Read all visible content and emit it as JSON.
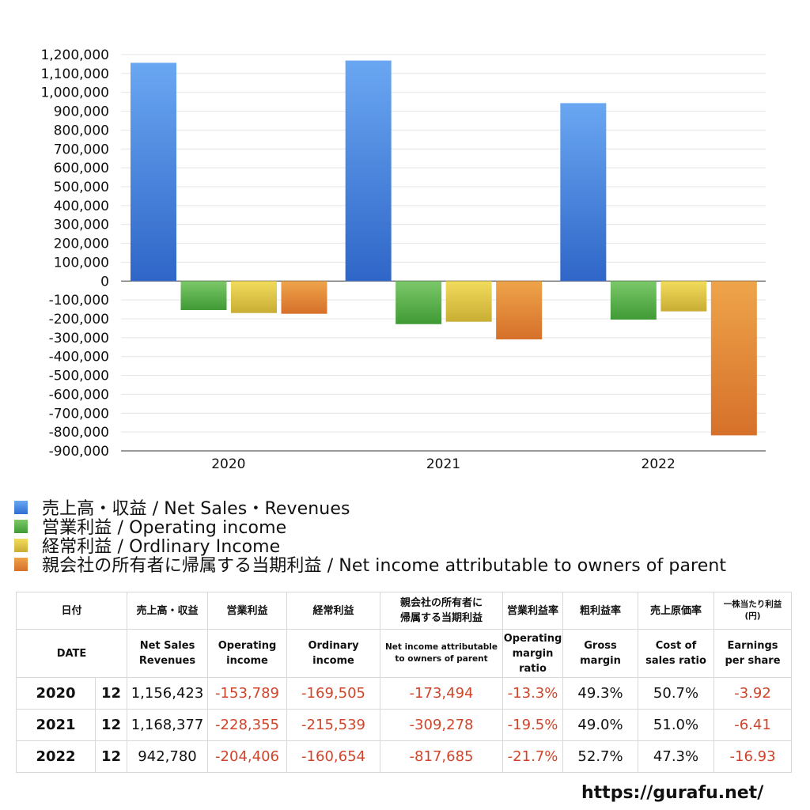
{
  "chart_data": {
    "type": "bar",
    "categories": [
      "2020",
      "2021",
      "2022"
    ],
    "series": [
      {
        "name": "売上高・収益 / Net Sales・Revenues",
        "values": [
          1156423,
          1168377,
          942780
        ],
        "color": "#3c7fde"
      },
      {
        "name": "営業利益 / Operating income",
        "values": [
          -153789,
          -228355,
          -204406
        ],
        "color": "#4aa63c"
      },
      {
        "name": "経常利益 / Ordlinary Income",
        "values": [
          -169505,
          -215539,
          -160654
        ],
        "color": "#dcc43c"
      },
      {
        "name": "親会社の所有者に帰属する当期利益 / Net income attributable to owners of parent",
        "values": [
          -173494,
          -309278,
          -817685
        ],
        "color": "#e0822e"
      }
    ],
    "ylim": [
      -900000,
      1200000
    ],
    "ytick_step": 100000,
    "yticks": [
      "1,200,000",
      "1,100,000",
      "1,000,000",
      "900,000",
      "800,000",
      "700,000",
      "600,000",
      "500,000",
      "400,000",
      "300,000",
      "200,000",
      "100,000",
      "0",
      "-100,000",
      "-200,000",
      "-300,000",
      "-400,000",
      "-500,000",
      "-600,000",
      "-700,000",
      "-800,000",
      "-900,000"
    ],
    "grid": true,
    "legend_position": "bottom"
  },
  "table": {
    "header_jp": [
      "日付",
      "売上高・収益",
      "営業利益",
      "経常利益",
      "親会社の所有者に帰属する当期利益",
      "営業利益率",
      "粗利益率",
      "売上原価率",
      "一株当たり利益(円)"
    ],
    "header_jp_parts": {
      "netincome_1": "親会社の所有者に",
      "netincome_2": "帰属する当期利益",
      "eps_1": "一株当たり利益",
      "eps_2": "(円)"
    },
    "header_en": {
      "date": "DATE",
      "sales_1": "Net Sales",
      "sales_2": "Revenues",
      "op_1": "Operating",
      "op_2": "income",
      "ord_1": "Ordinary",
      "ord_2": "income",
      "ni_1": "Net income attributable",
      "ni_2": "to owners of parent",
      "opm_1": "Operating",
      "opm_2": "margin",
      "opm_3": "ratio",
      "gm_1": "Gross",
      "gm_2": "margin",
      "cos_1": "Cost of",
      "cos_2": "sales ratio",
      "eps_1": "Earnings",
      "eps_2": "per share"
    },
    "rows": [
      {
        "year": "2020",
        "month": "12",
        "sales": "1,156,423",
        "op": "-153,789",
        "ord": "-169,505",
        "ni": "-173,494",
        "opm": "-13.3%",
        "gm": "49.3%",
        "cos": "50.7%",
        "eps": "-3.92"
      },
      {
        "year": "2021",
        "month": "12",
        "sales": "1,168,377",
        "op": "-228,355",
        "ord": "-215,539",
        "ni": "-309,278",
        "opm": "-19.5%",
        "gm": "49.0%",
        "cos": "51.0%",
        "eps": "-6.41"
      },
      {
        "year": "2022",
        "month": "12",
        "sales": "942,780",
        "op": "-204,406",
        "ord": "-160,654",
        "ni": "-817,685",
        "opm": "-21.7%",
        "gm": "52.7%",
        "cos": "47.3%",
        "eps": "-16.93"
      }
    ]
  },
  "site_url": "https://gurafu.net/"
}
